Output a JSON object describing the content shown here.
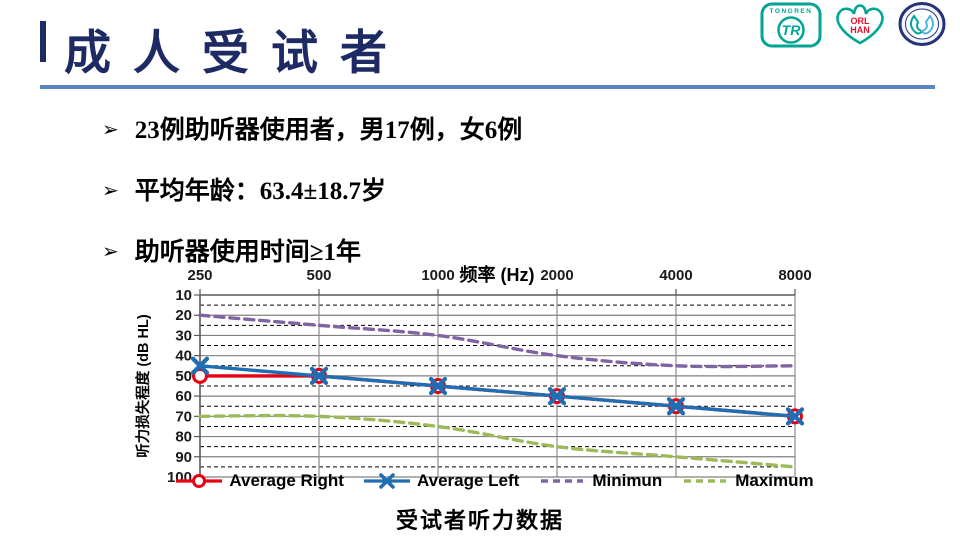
{
  "slide": {
    "title": "成人受试者"
  },
  "bullets": [
    {
      "marker": "➢",
      "text": "23例助听器使用者，男17例，女6例"
    },
    {
      "marker": "➢",
      "text": "平均年龄：63.4±18.7岁"
    },
    {
      "marker": "➢",
      "text": "助听器使用时间≥1年"
    }
  ],
  "caption": "受试者听力数据",
  "logos": {
    "tongren_text": "TONGREN",
    "tongren_monogram": "TR",
    "orlhan_line1": "ORL",
    "orlhan_line2": "HAN"
  },
  "colors": {
    "title_navy": "#1e2a63",
    "underline_blue": "#5d84c4",
    "logo_teal": "#00a693",
    "logo_red": "#e8112d",
    "logo_navy": "#26337a"
  },
  "chart_data": {
    "type": "line",
    "title": "",
    "xlabel": "频率 (Hz)",
    "ylabel": "听力损失程度 (dB  HL)",
    "categories": [
      "250",
      "500",
      "1000",
      "2000",
      "4000",
      "8000"
    ],
    "ylim": [
      10,
      100
    ],
    "y_inverted": true,
    "y_major_step": 10,
    "y_minor_step": 5,
    "grid": {
      "major": "solid gray",
      "minor": "dashed black"
    },
    "legend_position": "bottom",
    "series": [
      {
        "name": "Average Right",
        "color": "#e60012",
        "style": "solid",
        "marker": "open-circle",
        "values": [
          50,
          50,
          55,
          60,
          65,
          70
        ]
      },
      {
        "name": "Average Left",
        "color": "#1f6eb4",
        "style": "solid",
        "marker": "x",
        "values": [
          45,
          50,
          55,
          60,
          65,
          70
        ]
      },
      {
        "name": "Minimun",
        "color": "#8064a2",
        "style": "dashed",
        "marker": "none",
        "values": [
          20,
          25,
          30,
          40,
          45,
          45
        ]
      },
      {
        "name": "Maximum",
        "color": "#9bbb59",
        "style": "dashed",
        "marker": "none",
        "values": [
          70,
          70,
          75,
          85,
          90,
          95
        ]
      }
    ]
  }
}
